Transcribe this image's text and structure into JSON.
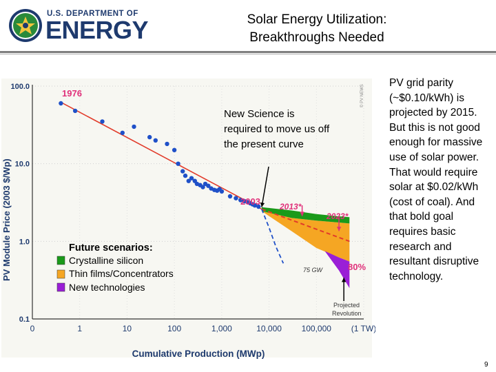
{
  "header": {
    "agency_small": "U.S. DEPARTMENT OF",
    "agency_big": "ENERGY",
    "title_line1": "Solar Energy Utilization:",
    "title_line2": "Breakthroughs Needed"
  },
  "side_text": "PV grid parity (~$0.10/kWh) is projected by 2015. But this is not good enough for massive use of solar power. That would require solar at $0.02/kWh (cost of coal). And that bold goal requires basic research and resultant disruptive technology.",
  "page_number": "9",
  "colors": {
    "doe_blue": "#1e3a6e",
    "crystalline": "#1a9a1a",
    "thin_film": "#f5a623",
    "new_tech": "#9a1fd6",
    "trend_red": "#e23b2a",
    "label_pink": "#e0307a",
    "data_blue": "#1f50c8"
  },
  "chart_data": {
    "type": "scatter",
    "xscale": "log",
    "yscale": "log",
    "xlabel": "Cumulative Production (MWp)",
    "ylabel": "PV Module Price (2003 $/Wp)",
    "xlim": [
      0.1,
      1000000
    ],
    "ylim": [
      0.1,
      100
    ],
    "x_ticks": [
      {
        "value": 0.1,
        "label": "0"
      },
      {
        "value": 1,
        "label": "1"
      },
      {
        "value": 10,
        "label": "10"
      },
      {
        "value": 100,
        "label": "100"
      },
      {
        "value": 1000,
        "label": "1,000"
      },
      {
        "value": 10000,
        "label": "10,000"
      },
      {
        "value": 100000,
        "label": "100,000"
      },
      {
        "value": 1000000,
        "label": "(1 TW)"
      }
    ],
    "y_ticks": [
      {
        "value": 100,
        "label": "100.0"
      },
      {
        "value": 10,
        "label": "10.0"
      },
      {
        "value": 1,
        "label": "1.0"
      },
      {
        "value": 0.1,
        "label": "0.1"
      }
    ],
    "historical_points": [
      [
        0.4,
        60
      ],
      [
        0.8,
        48
      ],
      [
        3,
        35
      ],
      [
        8,
        25
      ],
      [
        14,
        30
      ],
      [
        30,
        22
      ],
      [
        40,
        20
      ],
      [
        70,
        18
      ],
      [
        100,
        15
      ],
      [
        120,
        10
      ],
      [
        150,
        8
      ],
      [
        170,
        7
      ],
      [
        200,
        6
      ],
      [
        230,
        6.5
      ],
      [
        270,
        6
      ],
      [
        300,
        5.5
      ],
      [
        350,
        5.3
      ],
      [
        400,
        5
      ],
      [
        450,
        5.5
      ],
      [
        520,
        5.2
      ],
      [
        600,
        4.8
      ],
      [
        700,
        4.6
      ],
      [
        800,
        4.5
      ],
      [
        900,
        4.7
      ],
      [
        1000,
        4.4
      ],
      [
        1500,
        3.8
      ],
      [
        2000,
        3.6
      ],
      [
        2500,
        3.4
      ],
      [
        3000,
        3.3
      ],
      [
        3500,
        3.2
      ],
      [
        4000,
        3.1
      ],
      [
        4500,
        3.0
      ],
      [
        5000,
        2.9
      ],
      [
        6000,
        2.8
      ]
    ],
    "trend_line": [
      [
        0.4,
        62
      ],
      [
        7000,
        2.6
      ]
    ],
    "trend_extension": [
      [
        7000,
        2.6
      ],
      [
        500000,
        1.0
      ]
    ],
    "revolution_curve": [
      [
        7000,
        2.6
      ],
      [
        10000,
        1.5
      ],
      [
        14000,
        0.85
      ],
      [
        20000,
        0.52
      ]
    ],
    "crystalline_band": {
      "x": [
        7000,
        30000,
        100000,
        300000,
        500000
      ],
      "upper": [
        2.75,
        2.5,
        2.25,
        2.1,
        2.05
      ],
      "lower": [
        2.45,
        2.0,
        1.85,
        1.75,
        1.7
      ]
    },
    "thin_film_band": {
      "x": [
        7000,
        30000,
        100000,
        300000,
        500000
      ],
      "upper": [
        2.45,
        2.0,
        1.85,
        1.75,
        1.7
      ],
      "lower": [
        2.45,
        1.35,
        0.82,
        0.62,
        0.55
      ]
    },
    "new_tech_band": {
      "x": [
        150000,
        300000,
        500000
      ],
      "upper": [
        0.75,
        0.62,
        0.55
      ],
      "lower": [
        0.75,
        0.42,
        0.25
      ]
    },
    "labels": {
      "year_1976": "1976",
      "year_2003": "2003",
      "year_2013": "2013*",
      "year_2023": "2023*",
      "gw_75": "75 GW",
      "pct_80": "80%",
      "revolution_line1": "Projected",
      "revolution_line2": "Revolution",
      "copyright": "© PV NEWS"
    },
    "annotation": "New Science is required to move us off the present curve",
    "legend": {
      "title": "Future scenarios:",
      "items": [
        "Crystalline silicon",
        "Thin films/Concentrators",
        "New technologies"
      ]
    }
  }
}
